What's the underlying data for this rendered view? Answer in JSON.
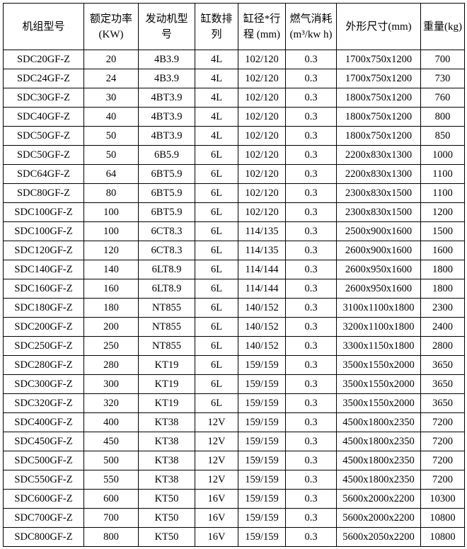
{
  "headers": [
    {
      "lines": [
        "机组型号"
      ]
    },
    {
      "lines": [
        "额定功率",
        "(KW)"
      ]
    },
    {
      "lines": [
        "发动机型",
        "号"
      ]
    },
    {
      "lines": [
        "缸数排",
        "列"
      ]
    },
    {
      "lines": [
        "缸径*行",
        "程 (mm)"
      ]
    },
    {
      "lines": [
        "燃气消耗",
        "(m³/kw h)"
      ]
    },
    {
      "lines": [
        "外形尺寸(mm)"
      ]
    },
    {
      "lines": [
        "重量(kg)"
      ]
    }
  ],
  "rows": [
    [
      "SDC20GF-Z",
      "20",
      "4B3.9",
      "4L",
      "102/120",
      "0.3",
      "1700x750x1200",
      "700"
    ],
    [
      "SDC24GF-Z",
      "24",
      "4B3.9",
      "4L",
      "102/120",
      "0.3",
      "1700x750x1200",
      "730"
    ],
    [
      "SDC30GF-Z",
      "30",
      "4BT3.9",
      "4L",
      "102/120",
      "0.3",
      "1800x750x1200",
      "760"
    ],
    [
      "SDC40GF-Z",
      "40",
      "4BT3.9",
      "4L",
      "102/120",
      "0.3",
      "1800x750x1200",
      "800"
    ],
    [
      "SDC50GF-Z",
      "50",
      "4BT3.9",
      "4L",
      "102/120",
      "0.3",
      "1800x750x1200",
      "850"
    ],
    [
      "SDC50GF-Z",
      "50",
      "6B5.9",
      "6L",
      "102/120",
      "0.3",
      "2200x830x1300",
      "1000"
    ],
    [
      "SDC64GF-Z",
      "64",
      "6BT5.9",
      "6L",
      "102/120",
      "0.3",
      "2200x830x1300",
      "1100"
    ],
    [
      "SDC80GF-Z",
      "80",
      "6BT5.9",
      "6L",
      "102/120",
      "0.3",
      "2300x830x1500",
      "1100"
    ],
    [
      "SDC100GF-Z",
      "100",
      "6BT5.9",
      "6L",
      "102/120",
      "0.3",
      "2300x830x1500",
      "1200"
    ],
    [
      "SDC100GF-Z",
      "100",
      "6CT8.3",
      "6L",
      "114/135",
      "0.3",
      "2500x900x1600",
      "1500"
    ],
    [
      "SDC120GF-Z",
      "120",
      "6CT8.3",
      "6L",
      "114/135",
      "0.3",
      "2600x900x1600",
      "1600"
    ],
    [
      "SDC140GF-Z",
      "140",
      "6LT8.9",
      "6L",
      "114/144",
      "0.3",
      "2600x950x1600",
      "1800"
    ],
    [
      "SDC160GF-Z",
      "160",
      "6LT8.9",
      "6L",
      "114/144",
      "0.3",
      "2600x950x1600",
      "1800"
    ],
    [
      "SDC180GF-Z",
      "180",
      "NT855",
      "6L",
      "140/152",
      "0.3",
      "3100x1100x1800",
      "2300"
    ],
    [
      "SDC200GF-Z",
      "200",
      "NT855",
      "6L",
      "140/152",
      "0.3",
      "3200x1100x1800",
      "2400"
    ],
    [
      "SDC250GF-Z",
      "250",
      "NT855",
      "6L",
      "140/152",
      "0.3",
      "3300x1150x1800",
      "2800"
    ],
    [
      "SDC280GF-Z",
      "280",
      "KT19",
      "6L",
      "159/159",
      "0.3",
      "3500x1550x2000",
      "3650"
    ],
    [
      "SDC300GF-Z",
      "300",
      "KT19",
      "6L",
      "159/159",
      "0.3",
      "3500x1550x2000",
      "3650"
    ],
    [
      "SDC320GF-Z",
      "320",
      "KT19",
      "6L",
      "159/159",
      "0.3",
      "3500x1550x2000",
      "3650"
    ],
    [
      "SDC400GF-Z",
      "400",
      "KT38",
      "12V",
      "159/159",
      "0.3",
      "4500x1800x2350",
      "7200"
    ],
    [
      "SDC450GF-Z",
      "450",
      "KT38",
      "12V",
      "159/159",
      "0.3",
      "4500x1800x2350",
      "7200"
    ],
    [
      "SDC500GF-Z",
      "500",
      "KT38",
      "12V",
      "159/159",
      "0.3",
      "4500x1800x2350",
      "7200"
    ],
    [
      "SDC550GF-Z",
      "550",
      "KT38",
      "12V",
      "159/159",
      "0.3",
      "4500x1800x2350",
      "7200"
    ],
    [
      "SDC600GF-Z",
      "600",
      "KT50",
      "16V",
      "159/159",
      "0.3",
      "5600x2000x2200",
      "10300"
    ],
    [
      "SDC700GF-Z",
      "700",
      "KT50",
      "16V",
      "159/159",
      "0.3",
      "5600x2000x2200",
      "10800"
    ],
    [
      "SDC800GF-Z",
      "800",
      "KT50",
      "16V",
      "159/159",
      "0.3",
      "5600x2050x2200",
      "10800"
    ]
  ]
}
